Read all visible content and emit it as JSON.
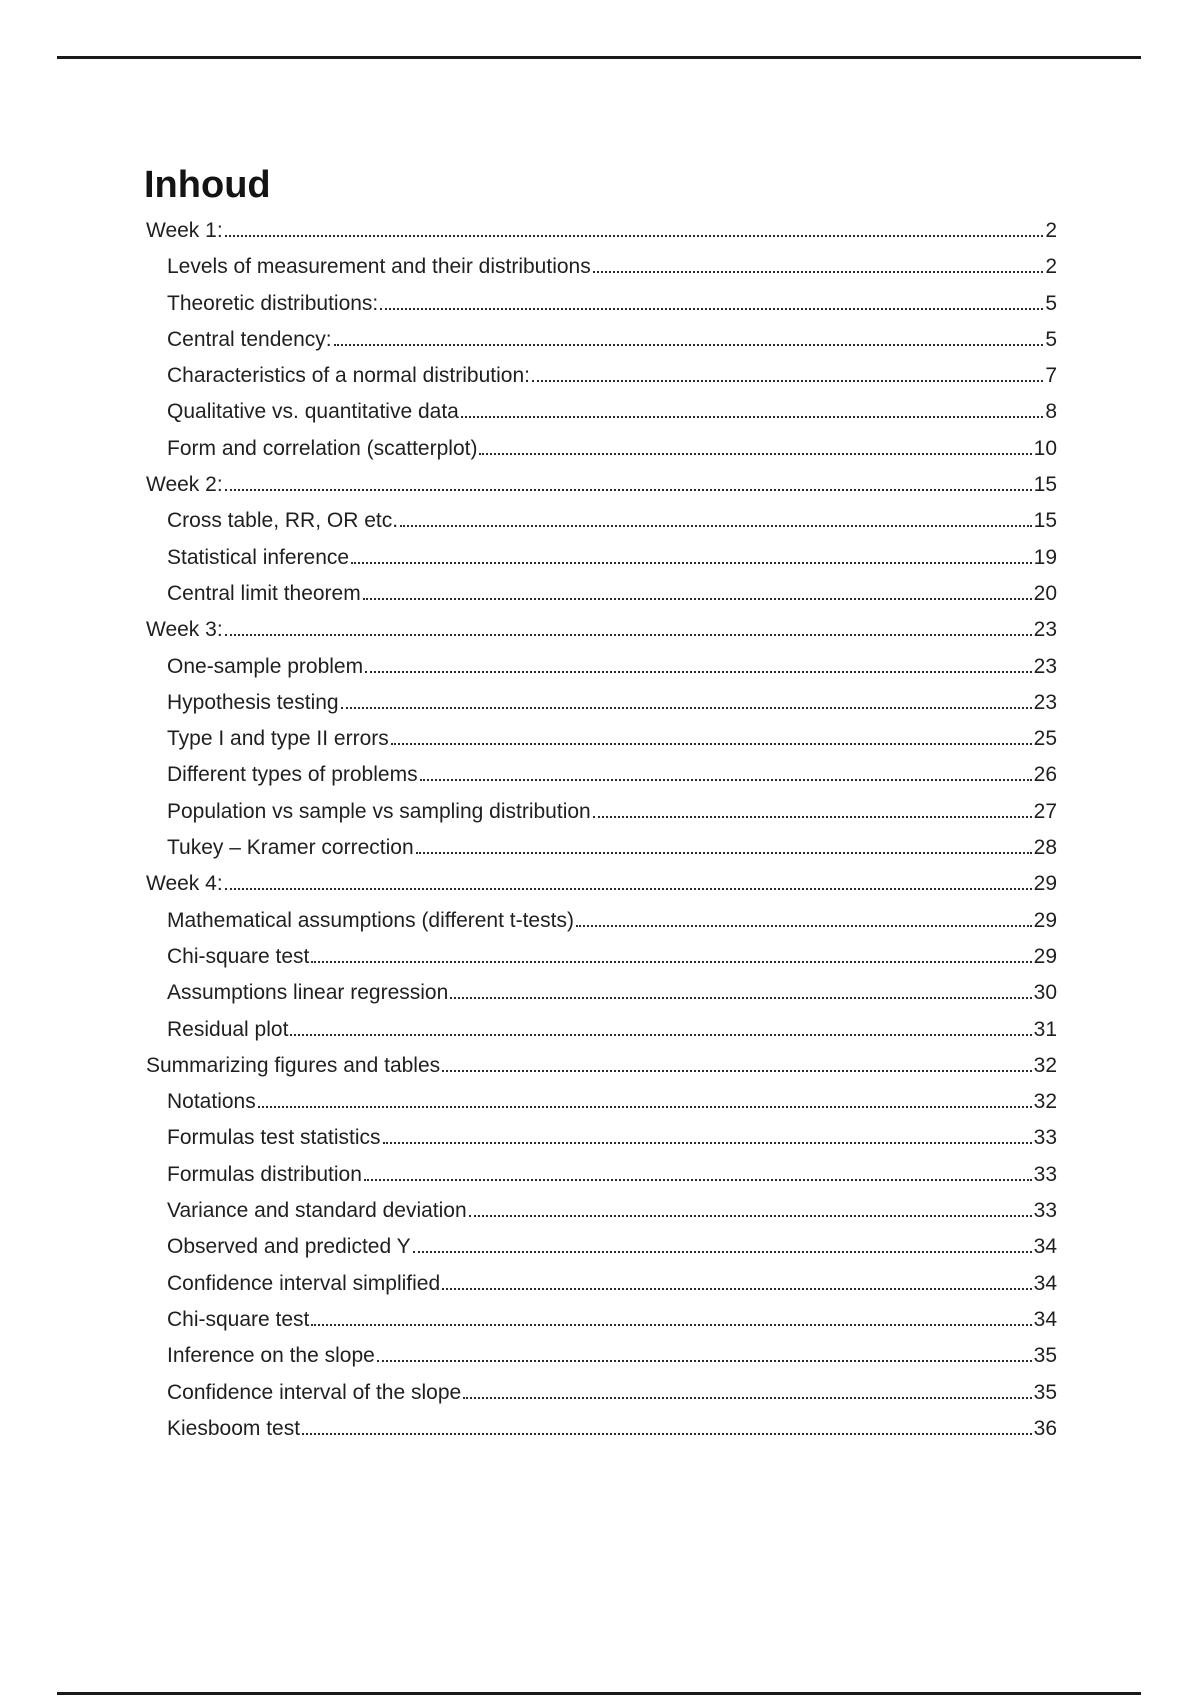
{
  "page": {
    "title": "Inhoud"
  },
  "colors": {
    "text": "#1f1f1f",
    "rule": "#1a1a1a",
    "leader_dots": "#2b2b2b",
    "background": "#ffffff"
  },
  "toc": {
    "entries": [
      {
        "label": "Week 1:",
        "page": "2",
        "level": 1
      },
      {
        "label": "Levels of measurement and their distributions",
        "page": "2",
        "level": 2
      },
      {
        "label": "Theoretic distributions:",
        "page": "5",
        "level": 2
      },
      {
        "label": "Central tendency:",
        "page": "5",
        "level": 2
      },
      {
        "label": "Characteristics of a normal distribution:",
        "page": "7",
        "level": 2
      },
      {
        "label": "Qualitative vs. quantitative data",
        "page": "8",
        "level": 2
      },
      {
        "label": "Form and correlation (scatterplot)",
        "page": "10",
        "level": 2
      },
      {
        "label": "Week 2:",
        "page": "15",
        "level": 1
      },
      {
        "label": "Cross table, RR, OR etc.",
        "page": "15",
        "level": 2
      },
      {
        "label": "Statistical inference",
        "page": "19",
        "level": 2
      },
      {
        "label": "Central limit theorem",
        "page": "20",
        "level": 2
      },
      {
        "label": "Week 3:",
        "page": "23",
        "level": 1
      },
      {
        "label": "One-sample problem",
        "page": "23",
        "level": 2
      },
      {
        "label": "Hypothesis testing",
        "page": "23",
        "level": 2
      },
      {
        "label": "Type I and type II errors",
        "page": "25",
        "level": 2
      },
      {
        "label": "Different types of problems",
        "page": "26",
        "level": 2
      },
      {
        "label": "Population vs sample vs sampling distribution",
        "page": "27",
        "level": 2
      },
      {
        "label": "Tukey – Kramer correction",
        "page": "28",
        "level": 2
      },
      {
        "label": "Week 4:",
        "page": "29",
        "level": 1
      },
      {
        "label": "Mathematical assumptions (different t-tests)",
        "page": "29",
        "level": 2
      },
      {
        "label": "Chi-square test",
        "page": "29",
        "level": 2
      },
      {
        "label": "Assumptions linear regression",
        "page": "30",
        "level": 2
      },
      {
        "label": "Residual plot",
        "page": "31",
        "level": 2
      },
      {
        "label": "Summarizing figures and tables",
        "page": "32",
        "level": 1
      },
      {
        "label": "Notations",
        "page": "32",
        "level": 2
      },
      {
        "label": "Formulas test statistics",
        "page": "33",
        "level": 2
      },
      {
        "label": "Formulas distribution",
        "page": "33",
        "level": 2
      },
      {
        "label": "Variance and standard deviation",
        "page": "33",
        "level": 2
      },
      {
        "label": "Observed and predicted Y",
        "page": "34",
        "level": 2
      },
      {
        "label": "Confidence interval simplified",
        "page": "34",
        "level": 2
      },
      {
        "label": "Chi-square test",
        "page": "34",
        "level": 2
      },
      {
        "label": "Inference on the slope",
        "page": "35",
        "level": 2
      },
      {
        "label": "Confidence interval of the slope",
        "page": "35",
        "level": 2
      },
      {
        "label": "Kiesboom test",
        "page": "36",
        "level": 2
      }
    ]
  }
}
